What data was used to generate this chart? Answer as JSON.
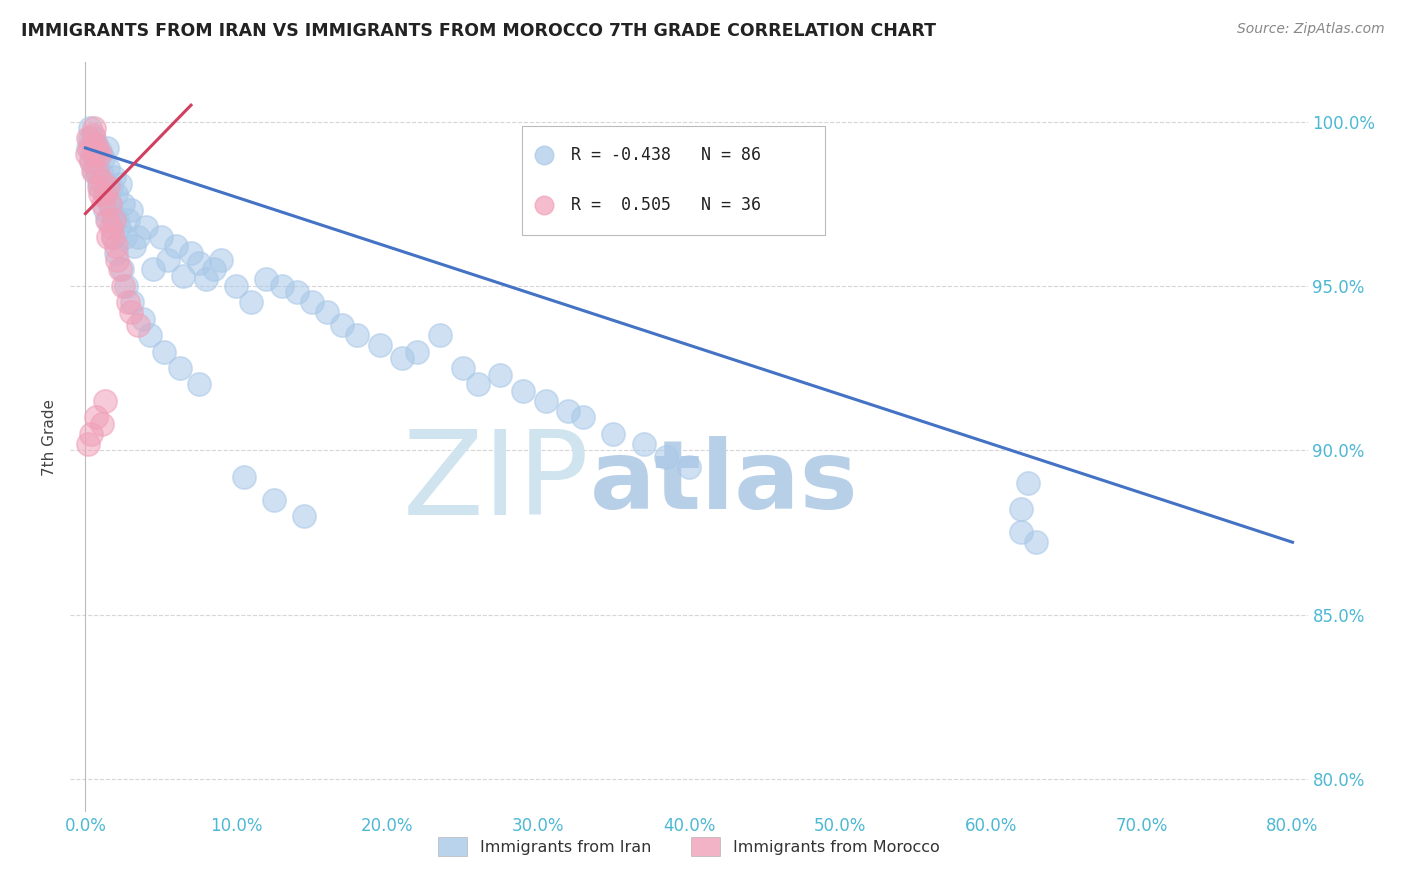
{
  "title": "IMMIGRANTS FROM IRAN VS IMMIGRANTS FROM MOROCCO 7TH GRADE CORRELATION CHART",
  "source": "Source: ZipAtlas.com",
  "ylabel": "7th Grade",
  "x_tick_labels": [
    "0.0%",
    "10.0%",
    "20.0%",
    "30.0%",
    "40.0%",
    "50.0%",
    "60.0%",
    "70.0%",
    "80.0%"
  ],
  "x_tick_values": [
    0,
    10,
    20,
    30,
    40,
    50,
    60,
    70,
    80
  ],
  "y_tick_labels": [
    "80.0%",
    "85.0%",
    "90.0%",
    "95.0%",
    "100.0%"
  ],
  "y_tick_values": [
    80,
    85,
    90,
    95,
    100
  ],
  "xlim": [
    -1,
    81
  ],
  "ylim": [
    79.0,
    101.8
  ],
  "iran_color": "#a8c8e8",
  "morocco_color": "#f0a0b8",
  "iran_R": -0.438,
  "iran_N": 86,
  "morocco_R": 0.505,
  "morocco_N": 36,
  "legend_label_iran": "Immigrants from Iran",
  "legend_label_morocco": "Immigrants from Morocco",
  "watermark_zip": "ZIP",
  "watermark_atlas": "atlas",
  "watermark_color_zip": "#d0e4f0",
  "watermark_color_atlas": "#b8cfe8",
  "background_color": "#ffffff",
  "grid_color": "#cccccc",
  "title_color": "#222222",
  "axis_label_color": "#444444",
  "tick_color": "#4db8d4",
  "iran_scatter_x": [
    0.2,
    0.3,
    0.4,
    0.5,
    0.6,
    0.7,
    0.8,
    0.9,
    1.0,
    1.1,
    1.2,
    1.3,
    1.4,
    1.5,
    1.6,
    1.7,
    1.8,
    1.9,
    2.0,
    2.1,
    2.2,
    2.3,
    2.5,
    2.6,
    2.8,
    3.0,
    3.2,
    3.5,
    4.0,
    4.5,
    5.0,
    5.5,
    6.0,
    6.5,
    7.0,
    7.5,
    8.0,
    8.5,
    9.0,
    10.0,
    11.0,
    12.0,
    13.0,
    14.0,
    15.0,
    16.0,
    17.0,
    18.0,
    19.5,
    21.0,
    22.0,
    23.5,
    25.0,
    26.0,
    27.5,
    29.0,
    30.5,
    32.0,
    33.0,
    35.0,
    37.0,
    38.5,
    40.0,
    0.3,
    0.6,
    0.8,
    1.0,
    1.3,
    1.5,
    1.8,
    2.0,
    2.4,
    2.7,
    3.1,
    3.8,
    4.3,
    5.2,
    6.3,
    7.5,
    10.5,
    12.5,
    14.5,
    62.0,
    62.0,
    62.5,
    63.0
  ],
  "iran_scatter_y": [
    99.2,
    99.5,
    98.8,
    99.0,
    98.5,
    99.3,
    98.7,
    98.2,
    99.1,
    98.4,
    98.9,
    97.8,
    99.2,
    98.6,
    97.5,
    98.0,
    97.2,
    98.3,
    97.8,
    97.0,
    96.8,
    98.1,
    97.5,
    96.5,
    97.0,
    97.3,
    96.2,
    96.5,
    96.8,
    95.5,
    96.5,
    95.8,
    96.2,
    95.3,
    96.0,
    95.7,
    95.2,
    95.5,
    95.8,
    95.0,
    94.5,
    95.2,
    95.0,
    94.8,
    94.5,
    94.2,
    93.8,
    93.5,
    93.2,
    92.8,
    93.0,
    93.5,
    92.5,
    92.0,
    92.3,
    91.8,
    91.5,
    91.2,
    91.0,
    90.5,
    90.2,
    89.8,
    89.5,
    99.8,
    99.5,
    98.5,
    98.0,
    97.3,
    97.0,
    96.5,
    96.0,
    95.5,
    95.0,
    94.5,
    94.0,
    93.5,
    93.0,
    92.5,
    92.0,
    89.2,
    88.5,
    88.0,
    87.5,
    88.2,
    89.0,
    87.2
  ],
  "morocco_scatter_x": [
    0.1,
    0.2,
    0.3,
    0.4,
    0.5,
    0.5,
    0.6,
    0.6,
    0.7,
    0.8,
    0.8,
    0.9,
    1.0,
    1.0,
    1.1,
    1.2,
    1.3,
    1.4,
    1.5,
    1.5,
    1.6,
    1.7,
    1.8,
    1.9,
    2.0,
    2.1,
    2.3,
    2.5,
    2.8,
    3.0,
    3.5,
    0.2,
    0.4,
    0.7,
    1.1,
    1.3
  ],
  "morocco_scatter_y": [
    99.0,
    99.5,
    99.2,
    98.8,
    99.6,
    98.5,
    99.0,
    99.8,
    99.3,
    98.5,
    99.1,
    98.0,
    99.0,
    97.8,
    98.2,
    97.5,
    97.8,
    97.0,
    98.0,
    96.5,
    97.5,
    96.8,
    96.5,
    97.0,
    96.2,
    95.8,
    95.5,
    95.0,
    94.5,
    94.2,
    93.8,
    90.2,
    90.5,
    91.0,
    90.8,
    91.5
  ],
  "iran_line_x": [
    0,
    80
  ],
  "iran_line_y": [
    99.2,
    87.2
  ],
  "morocco_line_x": [
    0,
    7
  ],
  "morocco_line_y": [
    97.2,
    100.5
  ],
  "iran_line_color": "#4472c4",
  "morocco_line_color": "#d04060"
}
